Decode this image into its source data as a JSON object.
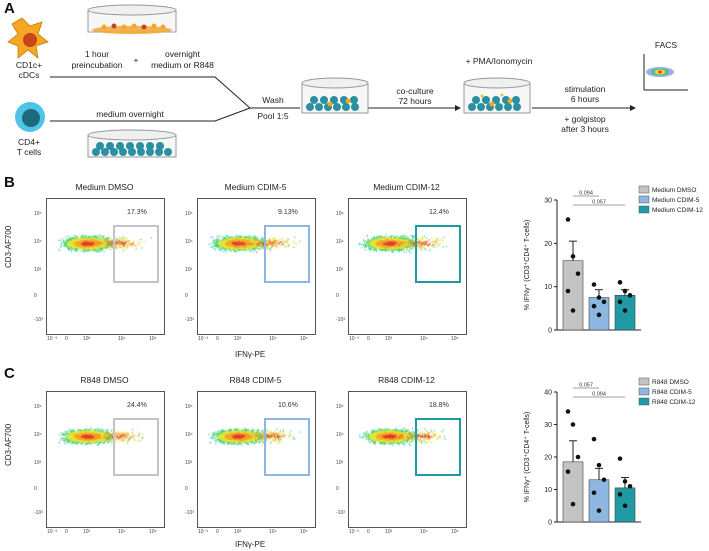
{
  "panelA": {
    "letter": "A",
    "dc_label_1": "CD1c+",
    "dc_label_2": "cDCs",
    "t_label_1": "CD4+",
    "t_label_2": "T cells",
    "step1_line1": "1 hour",
    "step1_line2": "preincubation",
    "plus": "+",
    "step2_line1": "overnight",
    "step2_line2": "medium or R848",
    "medium_overnight": "medium overnight",
    "wash": "Wash",
    "pool": "Pool 1:5",
    "coculture_1": "co-culture",
    "coculture_2": "72 hours",
    "pma": "+ PMA/Ionomycin",
    "stim_1": "stimulation",
    "stim_2": "6 hours",
    "golgi_1": "+ golgistop",
    "golgi_2": "after 3 hours",
    "facs": "FACS"
  },
  "flow_axes": {
    "ylabel": "CD3-AF700",
    "xlabel": "IFNγ-PE",
    "yticks": [
      "10⁵",
      "10⁴",
      "10³",
      "0",
      "-10³"
    ],
    "xticks": [
      "10⁻³",
      "0",
      "10³",
      "10⁴",
      "10⁵"
    ]
  },
  "panelB": {
    "letter": "B",
    "plots": [
      {
        "title": "Medium DMSO",
        "pct": "17.3%",
        "color": "#c4c4c4"
      },
      {
        "title": "Medium CDIM-5",
        "pct": "9.13%",
        "color": "#8db7e0"
      },
      {
        "title": "Medium CDIM-12",
        "pct": "12.4%",
        "color": "#1f9aa5"
      }
    ]
  },
  "panelC": {
    "letter": "C",
    "plots": [
      {
        "title": "R848 DMSO",
        "pct": "24.4%",
        "color": "#c4c4c4"
      },
      {
        "title": "R848 CDIM-5",
        "pct": "10.6%",
        "color": "#8db7e0"
      },
      {
        "title": "R848 CDIM-12",
        "pct": "18.8%",
        "color": "#1f9aa5"
      }
    ]
  },
  "chart_data": [
    {
      "type": "bar",
      "title": "",
      "ylabel": "% IFNγ⁺ (CD3⁺CD4⁺ T-cells)",
      "ylim": [
        0,
        30
      ],
      "yticks": [
        "0",
        "10",
        "20",
        "30"
      ],
      "categories": [
        "Medium DMSO",
        "Medium CDIM-5",
        "Medium CDIM-12"
      ],
      "values": [
        16,
        7.5,
        8
      ],
      "errors": [
        4.5,
        1.8,
        1.3
      ],
      "points": [
        [
          25.5,
          17,
          13,
          9,
          4.5
        ],
        [
          10.5,
          7.5,
          6.5,
          5.5,
          3.5
        ],
        [
          11,
          9,
          8,
          6.5,
          4.5
        ]
      ],
      "colors": [
        "#c4c4c4",
        "#8db7e0",
        "#1f9aa5"
      ],
      "comparisons": [
        {
          "label": "0.094",
          "from": 0,
          "to": 1
        },
        {
          "label": "0.057",
          "from": 0,
          "to": 2
        }
      ],
      "legend": [
        "Medium DMSO",
        "Medium CDIM-5",
        "Medium CDIM-12"
      ]
    },
    {
      "type": "bar",
      "title": "",
      "ylabel": "% IFNγ⁺ (CD3⁺CD4⁺ T-cells)",
      "ylim": [
        0,
        40
      ],
      "yticks": [
        "0",
        "10",
        "20",
        "30",
        "40"
      ],
      "categories": [
        "R848 DMSO",
        "R848 CDIM-5",
        "R848 CDIM-12"
      ],
      "values": [
        18.5,
        13,
        10.5
      ],
      "errors": [
        6.5,
        3.5,
        3.2
      ],
      "points": [
        [
          34,
          30,
          20,
          15.5,
          5.5
        ],
        [
          25.5,
          17.5,
          13,
          9,
          3.5
        ],
        [
          19.5,
          12.5,
          11,
          8.5,
          5
        ]
      ],
      "colors": [
        "#c4c4c4",
        "#8db7e0",
        "#1f9aa5"
      ],
      "comparisons": [
        {
          "label": "0.057",
          "from": 0,
          "to": 1
        },
        {
          "label": "0.094",
          "from": 0,
          "to": 2
        }
      ],
      "legend": [
        "R848 DMSO",
        "R848 CDIM-5",
        "R848 CDIM-12"
      ]
    }
  ]
}
